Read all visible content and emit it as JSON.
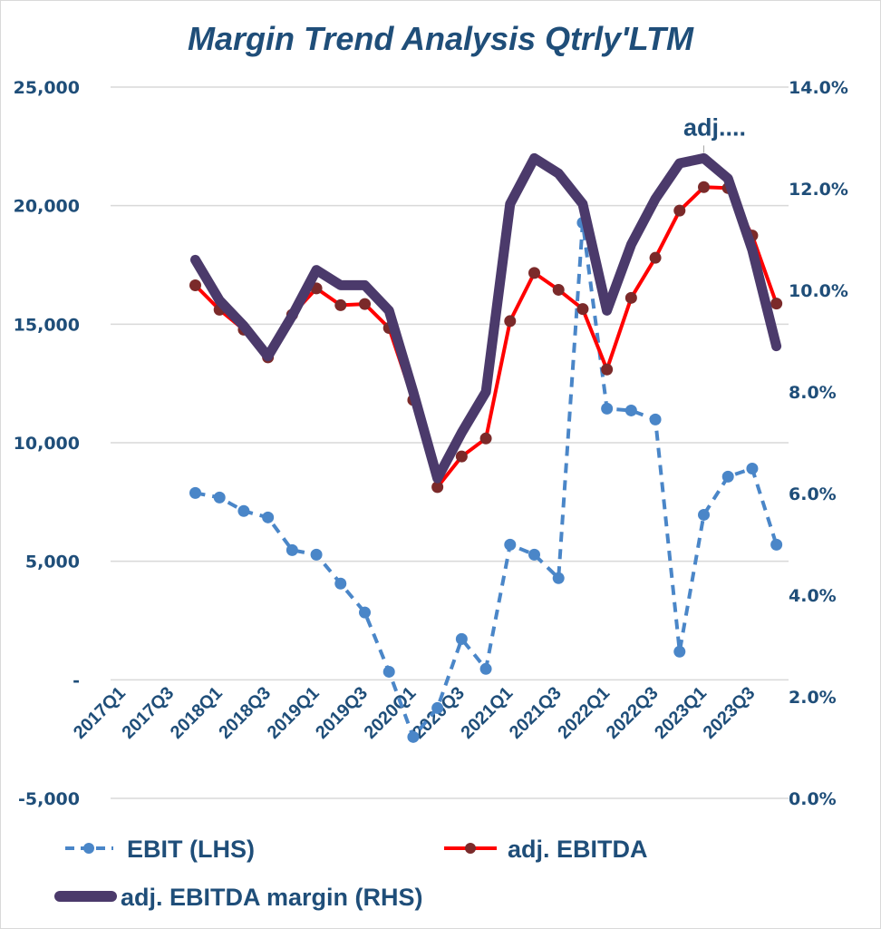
{
  "chart_data": {
    "type": "line",
    "title": "Margin Trend Analysis Qtrly'LTM",
    "categories": [
      "2017Q1",
      "2017Q2",
      "2017Q3",
      "2017Q4",
      "2018Q1",
      "2018Q2",
      "2018Q3",
      "2018Q4",
      "2019Q1",
      "2019Q2",
      "2019Q3",
      "2019Q4",
      "2020Q1",
      "2020Q2",
      "2020Q3",
      "2020Q4",
      "2021Q1",
      "2021Q2",
      "2021Q3",
      "2021Q4",
      "2022Q1",
      "2022Q2",
      "2022Q3",
      "2022Q4",
      "2023Q1",
      "2023Q2",
      "2023Q3",
      "2023Q4"
    ],
    "x_tick_labels": [
      "2017Q1",
      "2017Q3",
      "2018Q1",
      "2018Q3",
      "2019Q1",
      "2019Q3",
      "2020Q1",
      "2020Q3",
      "2021Q1",
      "2021Q3",
      "2022Q1",
      "2022Q3",
      "2023Q1",
      "2023Q3"
    ],
    "y_left": {
      "ylim": [
        -5000,
        25000
      ],
      "ticks": [
        -5000,
        0,
        5000,
        10000,
        15000,
        20000,
        25000
      ],
      "tick_labels": [
        "-5,000",
        "-",
        "5,000",
        "10,000",
        "15,000",
        "20,000",
        "25,000"
      ]
    },
    "y_right": {
      "ylim": [
        0,
        14
      ],
      "ticks": [
        0,
        2,
        4,
        6,
        8,
        10,
        12,
        14
      ],
      "tick_labels": [
        "0.0%",
        "2.0%",
        "4.0%",
        "6.0%",
        "8.0%",
        "10.0%",
        "12.0%",
        "14.0%"
      ]
    },
    "grid": true,
    "legend_position": "bottom",
    "series": [
      {
        "name": "EBIT (LHS)",
        "axis": "left",
        "color": "#4a86c8",
        "style": "dashed-markers",
        "values": [
          null,
          null,
          null,
          7880,
          7690,
          7120,
          6850,
          5470,
          5280,
          4060,
          2840,
          340,
          -2410,
          -1190,
          1720,
          460,
          5700,
          5280,
          4290,
          19280,
          11440,
          11360,
          10980,
          1190,
          6960,
          8570,
          8910,
          5700
        ]
      },
      {
        "name": "adj. EBITDA",
        "axis": "left",
        "color": "#ff0000",
        "marker_color": "#7b2a2a",
        "style": "solid-markers",
        "values": [
          null,
          null,
          null,
          16640,
          15610,
          14770,
          13600,
          15400,
          16510,
          15800,
          15850,
          14840,
          11800,
          8130,
          9420,
          10180,
          15130,
          17160,
          16450,
          15640,
          13090,
          16110,
          17800,
          19790,
          20780,
          20740,
          18740,
          15870
        ]
      },
      {
        "name": "adj. EBITDA margin (RHS)",
        "axis": "right",
        "color": "#4b3a6b",
        "style": "thick",
        "values": [
          null,
          null,
          null,
          10.6,
          9.8,
          9.3,
          8.7,
          9.5,
          10.4,
          10.1,
          10.1,
          9.6,
          8.0,
          6.3,
          7.2,
          8.0,
          11.7,
          12.6,
          12.3,
          11.7,
          9.6,
          10.9,
          11.8,
          12.5,
          12.6,
          12.2,
          10.8,
          8.9
        ]
      }
    ],
    "annotations": [
      {
        "text": "adj....",
        "series": "adj. EBITDA margin (RHS)",
        "category": "2023Q1"
      }
    ]
  }
}
